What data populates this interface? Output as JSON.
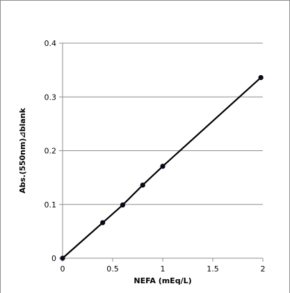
{
  "chart_data": {
    "type": "line",
    "title": "",
    "xlabel": "NEFA (mEq/L)",
    "ylabel": "Abs.(550nm)⊿blank",
    "xlim": [
      0,
      2
    ],
    "ylim": [
      0,
      0.4
    ],
    "x_ticks": [
      0,
      0.5,
      1,
      1.5,
      2
    ],
    "x_tick_labels": [
      "0",
      "0.5",
      "1",
      "1.5",
      "2"
    ],
    "y_ticks": [
      0,
      0.1,
      0.2,
      0.3,
      0.4
    ],
    "y_tick_labels": [
      "0",
      "0.1",
      "0.2",
      "0.3",
      "0.4"
    ],
    "grid": "horizontal",
    "legend": "none",
    "series": [
      {
        "color": "#000000",
        "x": [
          0,
          0.4,
          0.6,
          0.8,
          1.0,
          1.98
        ],
        "y": [
          0,
          0.066,
          0.099,
          0.136,
          0.171,
          0.336
        ]
      }
    ]
  }
}
